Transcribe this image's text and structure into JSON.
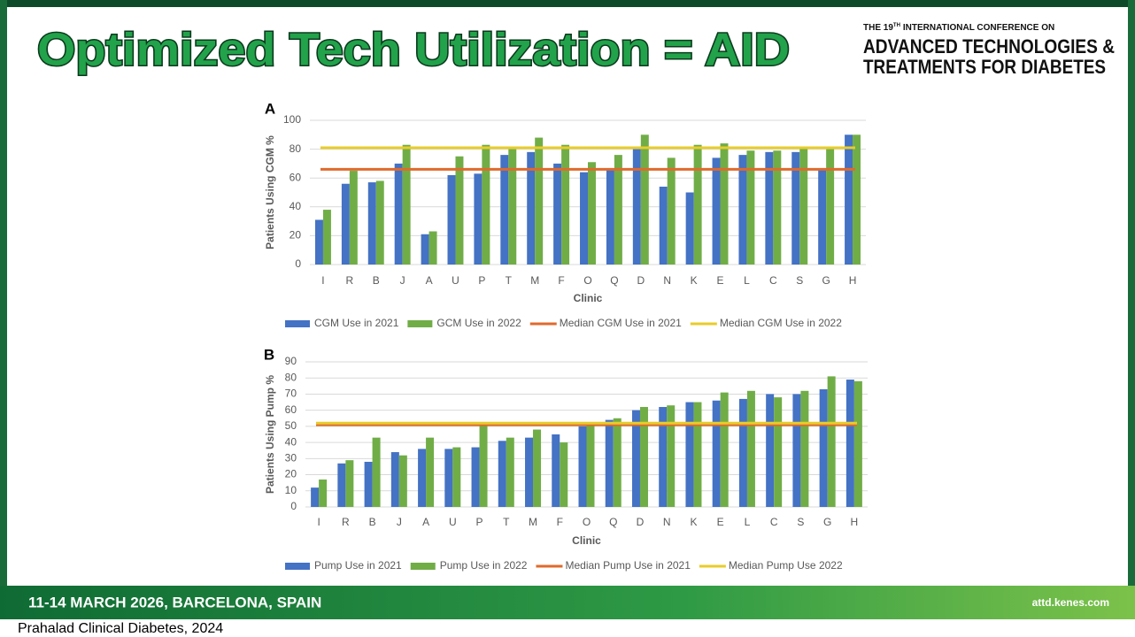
{
  "slide": {
    "title": "Optimized Tech Utilization = AID",
    "conference": {
      "kicker": [
        "THE 19",
        "TH",
        "INTERNATIONAL CONFERENCE ON"
      ],
      "name_lines": [
        "ADVANCED TECHNOLOGIES &",
        "TREATMENTS FOR DIABETES"
      ]
    },
    "footer": {
      "dates": "11-14 MARCH 2026, BARCELONA, SPAIN",
      "url": "attd.kenes.com"
    },
    "citation": "Prahalad Clinical Diabetes, 2024"
  },
  "chart_data": [
    {
      "type": "bar",
      "panel_label": "A",
      "x_label": "Clinic",
      "y_label": "Patients Using CGM %",
      "categories": [
        "I",
        "R",
        "B",
        "J",
        "A",
        "U",
        "P",
        "T",
        "M",
        "F",
        "O",
        "Q",
        "D",
        "N",
        "K",
        "E",
        "L",
        "C",
        "S",
        "G",
        "H"
      ],
      "series": [
        {
          "name": "CGM Use in 2021",
          "color": "#4472c4",
          "values": [
            31,
            56,
            57,
            70,
            21,
            62,
            63,
            76,
            78,
            70,
            64,
            66,
            80,
            54,
            50,
            74,
            76,
            78,
            78,
            66,
            90
          ]
        },
        {
          "name": "GCM Use in 2022",
          "color": "#70ad47",
          "values": [
            38,
            65,
            58,
            83,
            23,
            75,
            83,
            80,
            88,
            83,
            71,
            76,
            90,
            74,
            83,
            84,
            79,
            79,
            81,
            80,
            90
          ]
        },
        {
          "name": "Median CGM Use in 2021",
          "color": "#e06a2c",
          "value": 66
        },
        {
          "name": "Median CGM Use in 2022",
          "color": "#e8cc2a",
          "value": 81
        }
      ],
      "ylim": [
        0,
        100
      ],
      "yticks": [
        0,
        20,
        40,
        60,
        80,
        100
      ],
      "grid": true
    },
    {
      "type": "bar",
      "panel_label": "B",
      "x_label": "Clinic",
      "y_label": "Patients Using Pump %",
      "categories": [
        "I",
        "R",
        "B",
        "J",
        "A",
        "U",
        "P",
        "T",
        "M",
        "F",
        "O",
        "Q",
        "D",
        "N",
        "K",
        "E",
        "L",
        "C",
        "S",
        "G",
        "H"
      ],
      "series": [
        {
          "name": "Pump Use in 2021",
          "color": "#4472c4",
          "values": [
            12,
            27,
            28,
            34,
            36,
            36,
            37,
            41,
            43,
            45,
            50,
            54,
            60,
            62,
            65,
            66,
            67,
            70,
            70,
            73,
            79
          ]
        },
        {
          "name": "Pump Use in 2022",
          "color": "#70ad47",
          "values": [
            17,
            29,
            43,
            32,
            43,
            37,
            51,
            43,
            48,
            40,
            51,
            55,
            62,
            63,
            65,
            71,
            72,
            68,
            72,
            81,
            78
          ]
        },
        {
          "name": "Median Pump Use in 2021",
          "color": "#e06a2c",
          "value": 51
        },
        {
          "name": "Median Pump Use 2022",
          "color": "#e8cc2a",
          "value": 52
        }
      ],
      "ylim": [
        0,
        90
      ],
      "yticks": [
        0,
        10,
        20,
        30,
        40,
        50,
        60,
        70,
        80,
        90
      ],
      "grid": true
    }
  ]
}
